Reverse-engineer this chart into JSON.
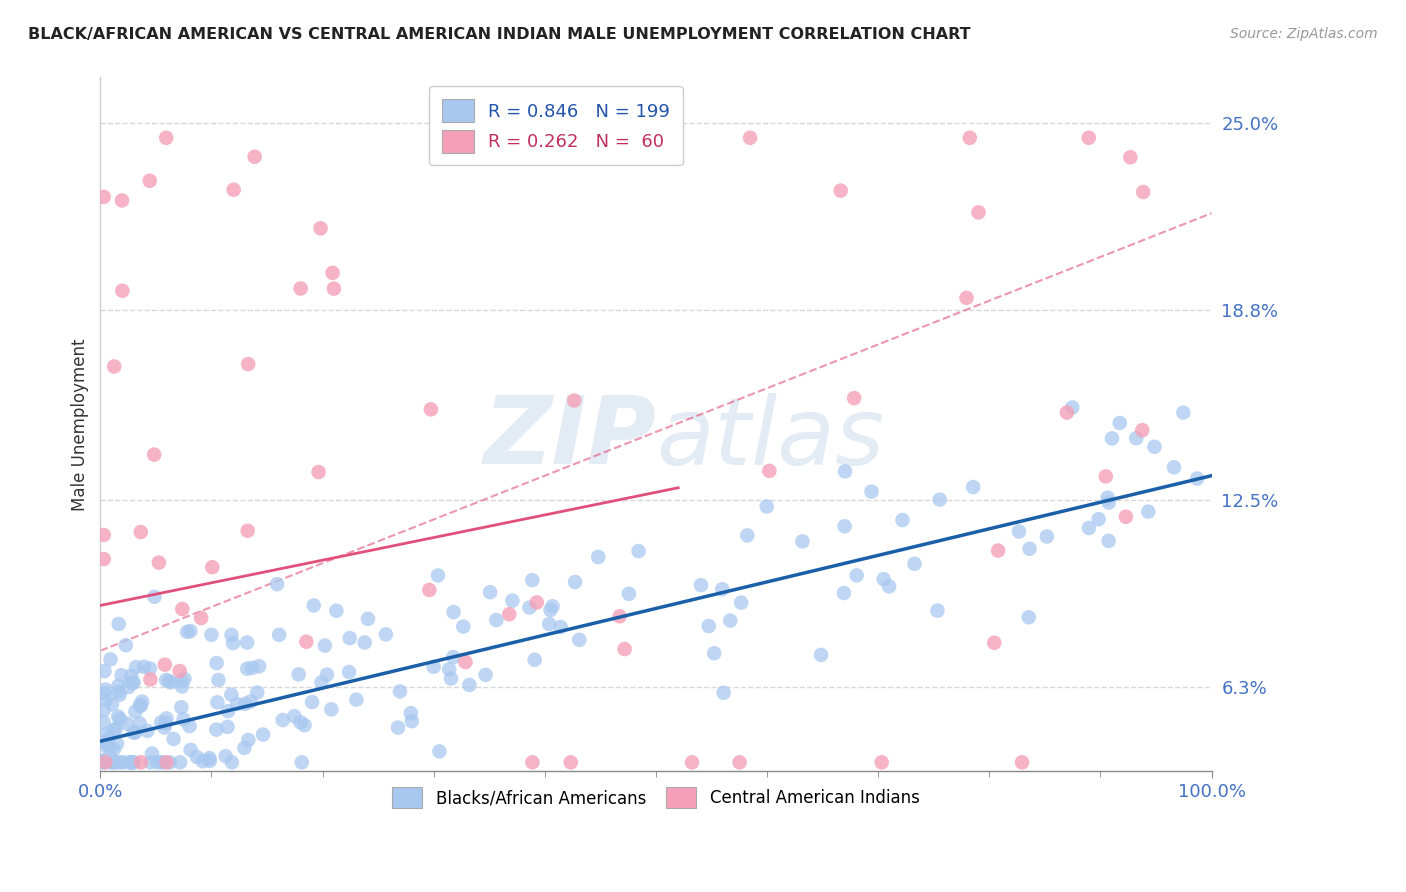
{
  "title": "BLACK/AFRICAN AMERICAN VS CENTRAL AMERICAN INDIAN MALE UNEMPLOYMENT CORRELATION CHART",
  "source": "Source: ZipAtlas.com",
  "ylabel": "Male Unemployment",
  "xmin": 0.0,
  "xmax": 100.0,
  "ymin": 3.5,
  "ymax": 26.5,
  "yticks": [
    6.3,
    12.5,
    18.8,
    25.0
  ],
  "legend_blue_r": "0.846",
  "legend_blue_n": "199",
  "legend_pink_r": "0.262",
  "legend_pink_n": " 60",
  "blue_scatter_color": "#a8c8f0",
  "pink_scatter_color": "#f5a0b8",
  "blue_line_color": "#1a5fa8",
  "pink_line_color": "#e0507a",
  "dashed_line_color": "#e0507a",
  "watermark_color": "#c8d8ec",
  "background_color": "#ffffff",
  "grid_color": "#d8d8d8",
  "blue_slope": 0.088,
  "blue_intercept": 4.5,
  "pink_slope": 0.075,
  "pink_intercept": 9.0,
  "dashed_slope": 0.145,
  "dashed_intercept": 7.5
}
